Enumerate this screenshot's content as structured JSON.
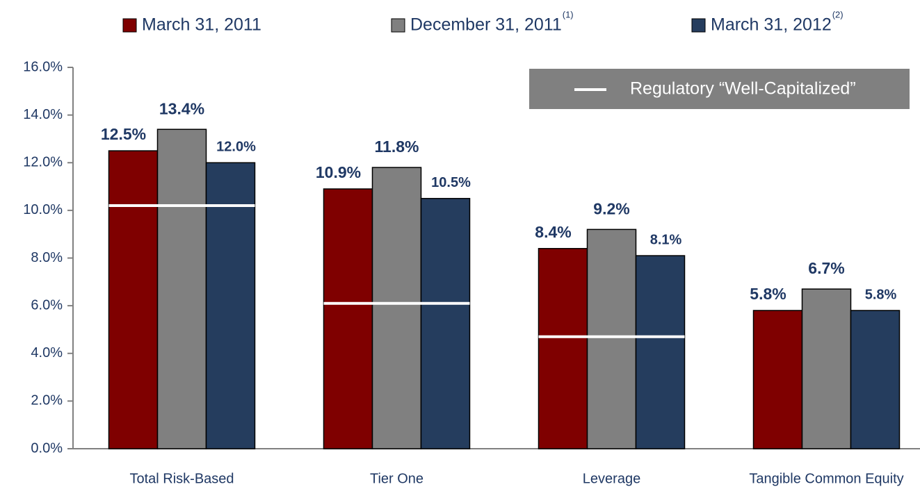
{
  "chart_data": {
    "type": "bar",
    "categories": [
      "Total Risk-Based",
      "Tier One",
      "Leverage",
      "Tangible Common Equity"
    ],
    "series": [
      {
        "name": "March 31, 2011",
        "color": "#7f0000",
        "values": [
          12.5,
          10.9,
          8.4,
          5.8
        ],
        "value_labels": [
          "12.5%",
          "10.9%",
          "8.4%",
          "5.8%"
        ]
      },
      {
        "name": "December 31, 2011",
        "superscript": "(1)",
        "color": "#808080",
        "values": [
          13.4,
          11.8,
          9.2,
          6.7
        ],
        "value_labels": [
          "13.4%",
          "11.8%",
          "9.2%",
          "6.7%"
        ]
      },
      {
        "name": "March 31, 2012",
        "superscript": "(2)",
        "color": "#253d5e",
        "values": [
          12.0,
          10.5,
          8.1,
          5.8
        ],
        "value_labels": [
          "12.0%",
          "10.5%",
          "8.1%",
          "5.8%"
        ]
      }
    ],
    "threshold": {
      "name": "Regulatory “Well-Capitalized”",
      "color": "#ffffff",
      "values": [
        10.2,
        6.1,
        4.7,
        null
      ]
    },
    "ylim": [
      0,
      16
    ],
    "yticks": [
      {
        "value": 0,
        "label": "0.0%"
      },
      {
        "value": 2,
        "label": "2.0%"
      },
      {
        "value": 4,
        "label": "4.0%"
      },
      {
        "value": 6,
        "label": "6.0%"
      },
      {
        "value": 8,
        "label": "8.0%"
      },
      {
        "value": 10,
        "label": "10.0%"
      },
      {
        "value": 12,
        "label": "12.0%"
      },
      {
        "value": 14,
        "label": "14.0%"
      },
      {
        "value": 16,
        "label": "16.0%"
      }
    ],
    "grid": false
  }
}
